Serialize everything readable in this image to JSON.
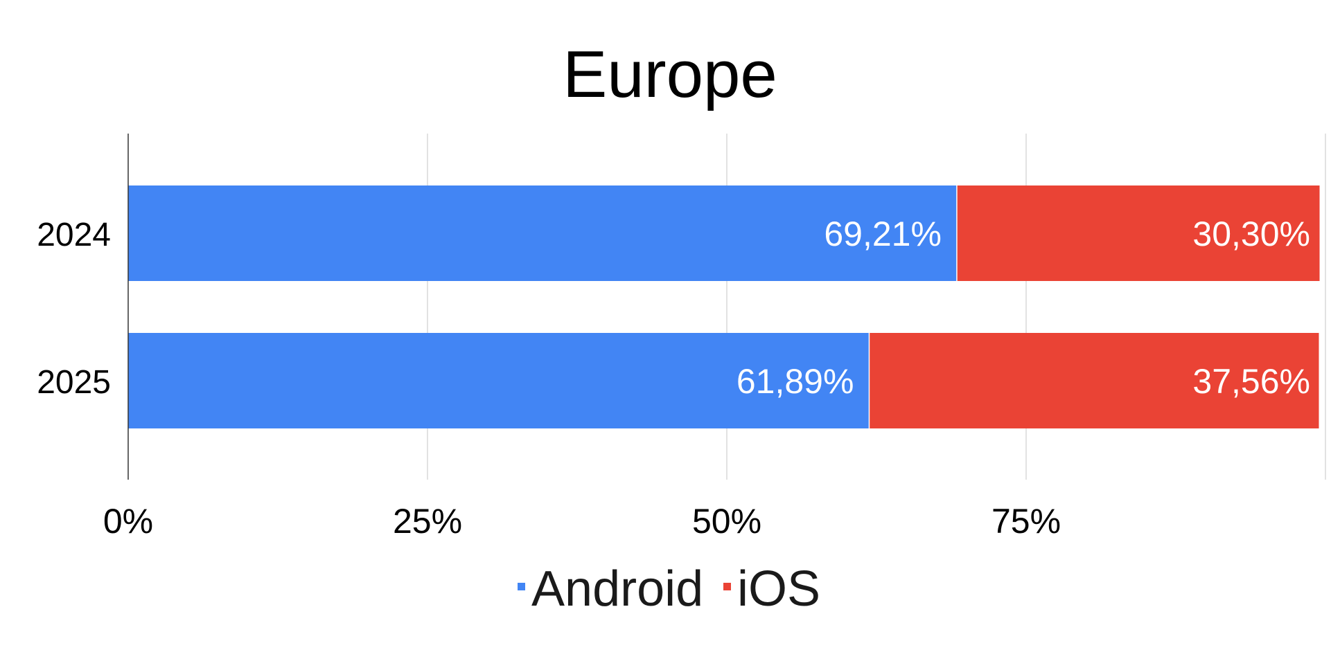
{
  "chart_data": {
    "type": "bar",
    "orientation": "horizontal",
    "stacked": true,
    "title": "Europe",
    "categories": [
      "2024",
      "2025"
    ],
    "series": [
      {
        "name": "Android",
        "color": "#4285F4",
        "values": [
          69.21,
          61.89
        ],
        "labels": [
          "69,21%",
          "61,89%"
        ]
      },
      {
        "name": "iOS",
        "color": "#EA4335",
        "values": [
          30.3,
          37.56
        ],
        "labels": [
          "30,30%",
          "37,56%"
        ]
      }
    ],
    "xlim": [
      0,
      100
    ],
    "x_ticks": [
      0,
      25,
      50,
      75
    ],
    "x_tick_labels": [
      "0%",
      "25%",
      "50%",
      "75%"
    ],
    "grid": true,
    "legend": "bottom"
  }
}
